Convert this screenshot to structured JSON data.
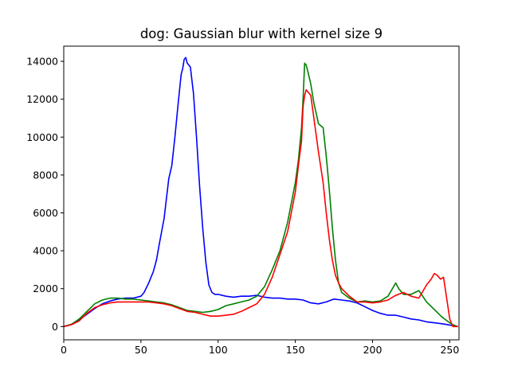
{
  "chart_data": {
    "type": "line",
    "title": "dog: Gaussian blur with kernel size 9",
    "xlabel": "",
    "ylabel": "",
    "xlim": [
      0,
      256
    ],
    "ylim": [
      -700,
      14800
    ],
    "xticks": [
      0,
      50,
      100,
      150,
      200,
      250
    ],
    "yticks": [
      0,
      2000,
      4000,
      6000,
      8000,
      10000,
      12000,
      14000
    ],
    "grid": false,
    "legend": "none",
    "series": [
      {
        "color": "#0000ff",
        "x": [
          0,
          5,
          10,
          15,
          20,
          25,
          30,
          35,
          40,
          45,
          50,
          52,
          55,
          58,
          60,
          62,
          65,
          68,
          70,
          72,
          74,
          76,
          77,
          78,
          79,
          80,
          82,
          84,
          86,
          88,
          90,
          92,
          94,
          96,
          98,
          100,
          105,
          110,
          115,
          120,
          125,
          130,
          135,
          140,
          145,
          150,
          155,
          160,
          165,
          170,
          175,
          180,
          185,
          190,
          195,
          200,
          205,
          210,
          215,
          220,
          225,
          230,
          235,
          240,
          245,
          250,
          252,
          255
        ],
        "y": [
          0,
          120,
          350,
          650,
          950,
          1200,
          1350,
          1450,
          1500,
          1500,
          1600,
          1800,
          2300,
          2900,
          3500,
          4400,
          5700,
          7800,
          8500,
          10000,
          11700,
          13300,
          13600,
          14100,
          14200,
          13900,
          13700,
          12300,
          10000,
          7400,
          5200,
          3400,
          2200,
          1800,
          1700,
          1700,
          1600,
          1550,
          1600,
          1600,
          1650,
          1550,
          1500,
          1500,
          1450,
          1450,
          1400,
          1250,
          1200,
          1300,
          1450,
          1400,
          1350,
          1250,
          1050,
          850,
          700,
          600,
          600,
          500,
          400,
          350,
          250,
          200,
          150,
          80,
          40,
          0
        ]
      },
      {
        "color": "#008000",
        "x": [
          0,
          5,
          10,
          15,
          20,
          25,
          30,
          35,
          40,
          45,
          50,
          55,
          60,
          65,
          70,
          75,
          80,
          85,
          90,
          95,
          100,
          105,
          110,
          115,
          120,
          125,
          130,
          135,
          140,
          145,
          150,
          152,
          154,
          155,
          156,
          157,
          158,
          160,
          162,
          165,
          168,
          170,
          172,
          174,
          176,
          178,
          180,
          185,
          190,
          195,
          200,
          205,
          210,
          215,
          217,
          220,
          225,
          230,
          235,
          240,
          245,
          250,
          252,
          255
        ],
        "y": [
          0,
          120,
          400,
          800,
          1200,
          1400,
          1500,
          1500,
          1450,
          1450,
          1400,
          1350,
          1300,
          1250,
          1150,
          1000,
          850,
          800,
          750,
          800,
          900,
          1100,
          1200,
          1300,
          1400,
          1600,
          2100,
          3000,
          4000,
          5500,
          7600,
          8800,
          10500,
          12000,
          13900,
          13800,
          13500,
          12800,
          11800,
          10700,
          10500,
          9000,
          7200,
          5200,
          3500,
          2300,
          1800,
          1500,
          1300,
          1350,
          1300,
          1350,
          1600,
          2300,
          2000,
          1700,
          1700,
          1900,
          1300,
          900,
          500,
          200,
          100,
          0
        ]
      },
      {
        "color": "#ff0000",
        "x": [
          0,
          5,
          10,
          15,
          20,
          25,
          30,
          35,
          40,
          45,
          50,
          55,
          60,
          65,
          70,
          75,
          80,
          85,
          90,
          95,
          100,
          105,
          110,
          115,
          120,
          125,
          130,
          135,
          140,
          145,
          150,
          152,
          154,
          155,
          156,
          157,
          158,
          160,
          162,
          165,
          168,
          170,
          172,
          174,
          176,
          178,
          180,
          185,
          190,
          195,
          200,
          205,
          210,
          215,
          220,
          225,
          230,
          235,
          238,
          240,
          242,
          244,
          246,
          248,
          250,
          252,
          255
        ],
        "y": [
          0,
          100,
          300,
          700,
          1000,
          1150,
          1250,
          1300,
          1300,
          1300,
          1300,
          1300,
          1250,
          1200,
          1100,
          950,
          800,
          750,
          650,
          550,
          550,
          600,
          650,
          800,
          1000,
          1200,
          1700,
          2600,
          3800,
          5000,
          7100,
          8500,
          9800,
          11600,
          12200,
          12500,
          12400,
          12200,
          11000,
          9200,
          7600,
          6000,
          4600,
          3500,
          2700,
          2300,
          2000,
          1600,
          1300,
          1300,
          1250,
          1300,
          1400,
          1650,
          1800,
          1600,
          1500,
          2200,
          2500,
          2800,
          2700,
          2500,
          2600,
          1500,
          400,
          0,
          0
        ]
      }
    ]
  }
}
